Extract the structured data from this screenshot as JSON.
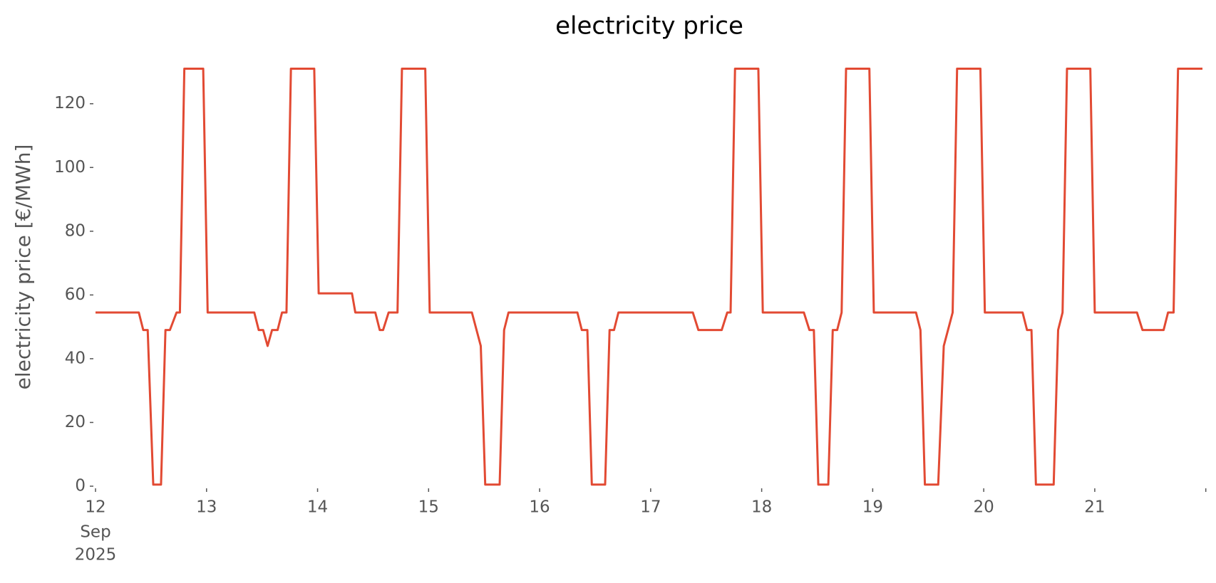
{
  "chart_data": {
    "type": "line",
    "title": "electricity price",
    "ylabel": "electricity price [€/MWh]",
    "x": [
      12.0,
      12.39,
      12.43,
      12.47,
      12.52,
      12.59,
      12.63,
      12.67,
      12.73,
      12.76,
      12.8,
      12.97,
      13.01,
      13.43,
      13.47,
      13.51,
      13.55,
      13.59,
      13.64,
      13.68,
      13.72,
      13.76,
      13.97,
      14.01,
      14.31,
      14.34,
      14.52,
      14.56,
      14.59,
      14.64,
      14.72,
      14.76,
      14.97,
      15.01,
      15.39,
      15.47,
      15.51,
      15.64,
      15.68,
      15.72,
      16.34,
      16.38,
      16.43,
      16.47,
      16.59,
      16.63,
      16.67,
      16.71,
      17.38,
      17.43,
      17.64,
      17.69,
      17.72,
      17.76,
      17.97,
      18.01,
      18.38,
      18.43,
      18.47,
      18.51,
      18.6,
      18.64,
      18.68,
      18.72,
      18.76,
      18.97,
      19.01,
      19.39,
      19.43,
      19.47,
      19.59,
      19.64,
      19.72,
      19.76,
      19.97,
      20.01,
      20.35,
      20.39,
      20.43,
      20.47,
      20.63,
      20.67,
      20.71,
      20.75,
      20.96,
      21.0,
      21.38,
      21.43,
      21.62,
      21.66,
      21.71,
      21.75,
      21.97
    ],
    "series": [
      {
        "name": "electricity price",
        "color": "#e24a33",
        "values": [
          54.5,
          54.5,
          49,
          49,
          0.5,
          0.5,
          49,
          49,
          54.5,
          54.5,
          131,
          131,
          54.5,
          54.5,
          49,
          49,
          44,
          49,
          49,
          54.5,
          54.5,
          131,
          131,
          60.5,
          60.5,
          54.5,
          54.5,
          49,
          49,
          54.5,
          54.5,
          131,
          131,
          54.5,
          54.5,
          44,
          0.5,
          0.5,
          49,
          54.5,
          54.5,
          49,
          49,
          0.5,
          0.5,
          49,
          49,
          54.5,
          54.5,
          49,
          49,
          54.5,
          54.5,
          131,
          131,
          54.5,
          54.5,
          49,
          49,
          0.5,
          0.5,
          49,
          49,
          54.5,
          131,
          131,
          54.5,
          54.5,
          49,
          0.5,
          0.5,
          44,
          54.5,
          131,
          131,
          54.5,
          54.5,
          49,
          49,
          0.5,
          0.5,
          49,
          54.5,
          131,
          131,
          54.5,
          54.5,
          49,
          49,
          54.5,
          54.5,
          131,
          131
        ]
      }
    ],
    "xlim": [
      12,
      21.97
    ],
    "xticks": [
      12,
      13,
      14,
      15,
      16,
      17,
      18,
      19,
      20,
      21,
      {
        "value": 22,
        "label": null
      }
    ],
    "xtick_sublabels": [
      "Sep",
      "2025"
    ],
    "ylim": [
      0,
      132
    ],
    "yticks": [
      0,
      20,
      40,
      60,
      80,
      100,
      120
    ],
    "grid": false
  }
}
